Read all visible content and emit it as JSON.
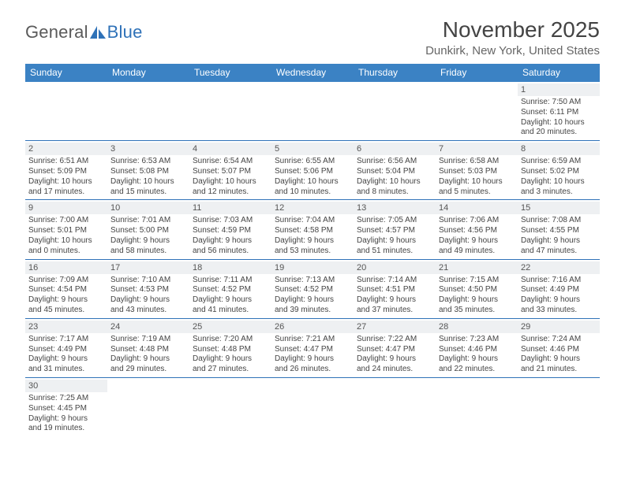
{
  "logo": {
    "part1": "General",
    "part2": "Blue"
  },
  "title": "November 2025",
  "location": "Dunkirk, New York, United States",
  "day_headers": [
    "Sunday",
    "Monday",
    "Tuesday",
    "Wednesday",
    "Thursday",
    "Friday",
    "Saturday"
  ],
  "colors": {
    "header_bg": "#3b82c4",
    "header_text": "#ffffff",
    "accent": "#2f72b8",
    "daynum_bg": "#eef0f2",
    "text": "#444444",
    "title_text": "#444444",
    "location_text": "#666666"
  },
  "typography": {
    "title_fontsize": 28,
    "location_fontsize": 15,
    "dayhead_fontsize": 12,
    "daynum_fontsize": 11,
    "detail_fontsize": 10
  },
  "grid": {
    "columns": 7,
    "rows": 6
  },
  "weeks": [
    [
      {
        "blank": true
      },
      {
        "blank": true
      },
      {
        "blank": true
      },
      {
        "blank": true
      },
      {
        "blank": true
      },
      {
        "blank": true
      },
      {
        "day": "1",
        "sunrise": "Sunrise: 7:50 AM",
        "sunset": "Sunset: 6:11 PM",
        "daylight1": "Daylight: 10 hours",
        "daylight2": "and 20 minutes."
      }
    ],
    [
      {
        "day": "2",
        "sunrise": "Sunrise: 6:51 AM",
        "sunset": "Sunset: 5:09 PM",
        "daylight1": "Daylight: 10 hours",
        "daylight2": "and 17 minutes."
      },
      {
        "day": "3",
        "sunrise": "Sunrise: 6:53 AM",
        "sunset": "Sunset: 5:08 PM",
        "daylight1": "Daylight: 10 hours",
        "daylight2": "and 15 minutes."
      },
      {
        "day": "4",
        "sunrise": "Sunrise: 6:54 AM",
        "sunset": "Sunset: 5:07 PM",
        "daylight1": "Daylight: 10 hours",
        "daylight2": "and 12 minutes."
      },
      {
        "day": "5",
        "sunrise": "Sunrise: 6:55 AM",
        "sunset": "Sunset: 5:06 PM",
        "daylight1": "Daylight: 10 hours",
        "daylight2": "and 10 minutes."
      },
      {
        "day": "6",
        "sunrise": "Sunrise: 6:56 AM",
        "sunset": "Sunset: 5:04 PM",
        "daylight1": "Daylight: 10 hours",
        "daylight2": "and 8 minutes."
      },
      {
        "day": "7",
        "sunrise": "Sunrise: 6:58 AM",
        "sunset": "Sunset: 5:03 PM",
        "daylight1": "Daylight: 10 hours",
        "daylight2": "and 5 minutes."
      },
      {
        "day": "8",
        "sunrise": "Sunrise: 6:59 AM",
        "sunset": "Sunset: 5:02 PM",
        "daylight1": "Daylight: 10 hours",
        "daylight2": "and 3 minutes."
      }
    ],
    [
      {
        "day": "9",
        "sunrise": "Sunrise: 7:00 AM",
        "sunset": "Sunset: 5:01 PM",
        "daylight1": "Daylight: 10 hours",
        "daylight2": "and 0 minutes."
      },
      {
        "day": "10",
        "sunrise": "Sunrise: 7:01 AM",
        "sunset": "Sunset: 5:00 PM",
        "daylight1": "Daylight: 9 hours",
        "daylight2": "and 58 minutes."
      },
      {
        "day": "11",
        "sunrise": "Sunrise: 7:03 AM",
        "sunset": "Sunset: 4:59 PM",
        "daylight1": "Daylight: 9 hours",
        "daylight2": "and 56 minutes."
      },
      {
        "day": "12",
        "sunrise": "Sunrise: 7:04 AM",
        "sunset": "Sunset: 4:58 PM",
        "daylight1": "Daylight: 9 hours",
        "daylight2": "and 53 minutes."
      },
      {
        "day": "13",
        "sunrise": "Sunrise: 7:05 AM",
        "sunset": "Sunset: 4:57 PM",
        "daylight1": "Daylight: 9 hours",
        "daylight2": "and 51 minutes."
      },
      {
        "day": "14",
        "sunrise": "Sunrise: 7:06 AM",
        "sunset": "Sunset: 4:56 PM",
        "daylight1": "Daylight: 9 hours",
        "daylight2": "and 49 minutes."
      },
      {
        "day": "15",
        "sunrise": "Sunrise: 7:08 AM",
        "sunset": "Sunset: 4:55 PM",
        "daylight1": "Daylight: 9 hours",
        "daylight2": "and 47 minutes."
      }
    ],
    [
      {
        "day": "16",
        "sunrise": "Sunrise: 7:09 AM",
        "sunset": "Sunset: 4:54 PM",
        "daylight1": "Daylight: 9 hours",
        "daylight2": "and 45 minutes."
      },
      {
        "day": "17",
        "sunrise": "Sunrise: 7:10 AM",
        "sunset": "Sunset: 4:53 PM",
        "daylight1": "Daylight: 9 hours",
        "daylight2": "and 43 minutes."
      },
      {
        "day": "18",
        "sunrise": "Sunrise: 7:11 AM",
        "sunset": "Sunset: 4:52 PM",
        "daylight1": "Daylight: 9 hours",
        "daylight2": "and 41 minutes."
      },
      {
        "day": "19",
        "sunrise": "Sunrise: 7:13 AM",
        "sunset": "Sunset: 4:52 PM",
        "daylight1": "Daylight: 9 hours",
        "daylight2": "and 39 minutes."
      },
      {
        "day": "20",
        "sunrise": "Sunrise: 7:14 AM",
        "sunset": "Sunset: 4:51 PM",
        "daylight1": "Daylight: 9 hours",
        "daylight2": "and 37 minutes."
      },
      {
        "day": "21",
        "sunrise": "Sunrise: 7:15 AM",
        "sunset": "Sunset: 4:50 PM",
        "daylight1": "Daylight: 9 hours",
        "daylight2": "and 35 minutes."
      },
      {
        "day": "22",
        "sunrise": "Sunrise: 7:16 AM",
        "sunset": "Sunset: 4:49 PM",
        "daylight1": "Daylight: 9 hours",
        "daylight2": "and 33 minutes."
      }
    ],
    [
      {
        "day": "23",
        "sunrise": "Sunrise: 7:17 AM",
        "sunset": "Sunset: 4:49 PM",
        "daylight1": "Daylight: 9 hours",
        "daylight2": "and 31 minutes."
      },
      {
        "day": "24",
        "sunrise": "Sunrise: 7:19 AM",
        "sunset": "Sunset: 4:48 PM",
        "daylight1": "Daylight: 9 hours",
        "daylight2": "and 29 minutes."
      },
      {
        "day": "25",
        "sunrise": "Sunrise: 7:20 AM",
        "sunset": "Sunset: 4:48 PM",
        "daylight1": "Daylight: 9 hours",
        "daylight2": "and 27 minutes."
      },
      {
        "day": "26",
        "sunrise": "Sunrise: 7:21 AM",
        "sunset": "Sunset: 4:47 PM",
        "daylight1": "Daylight: 9 hours",
        "daylight2": "and 26 minutes."
      },
      {
        "day": "27",
        "sunrise": "Sunrise: 7:22 AM",
        "sunset": "Sunset: 4:47 PM",
        "daylight1": "Daylight: 9 hours",
        "daylight2": "and 24 minutes."
      },
      {
        "day": "28",
        "sunrise": "Sunrise: 7:23 AM",
        "sunset": "Sunset: 4:46 PM",
        "daylight1": "Daylight: 9 hours",
        "daylight2": "and 22 minutes."
      },
      {
        "day": "29",
        "sunrise": "Sunrise: 7:24 AM",
        "sunset": "Sunset: 4:46 PM",
        "daylight1": "Daylight: 9 hours",
        "daylight2": "and 21 minutes."
      }
    ],
    [
      {
        "day": "30",
        "sunrise": "Sunrise: 7:25 AM",
        "sunset": "Sunset: 4:45 PM",
        "daylight1": "Daylight: 9 hours",
        "daylight2": "and 19 minutes."
      },
      {
        "blank": true
      },
      {
        "blank": true
      },
      {
        "blank": true
      },
      {
        "blank": true
      },
      {
        "blank": true
      },
      {
        "blank": true
      }
    ]
  ]
}
